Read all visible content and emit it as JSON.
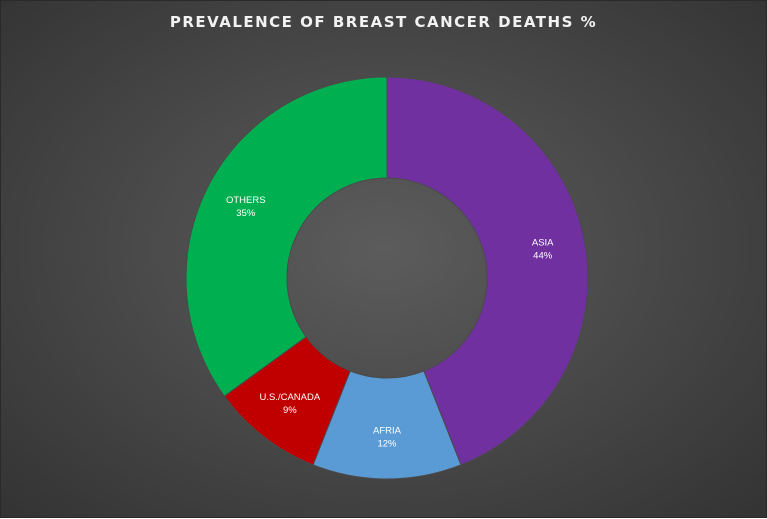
{
  "chart_data": {
    "type": "donut",
    "title": "PREVALENCE OF BREAST CANCER DEATHS %",
    "slices": [
      {
        "name": "ASIA",
        "value": 44,
        "label": "44%",
        "color": "#7030a0"
      },
      {
        "name": "AFRIA",
        "value": 12,
        "label": "12%",
        "color": "#5b9bd5"
      },
      {
        "name": "U.S./CANADA",
        "value": 9,
        "label": "9%",
        "color": "#c00000"
      },
      {
        "name": "OTHERS",
        "value": 35,
        "label": "35%",
        "color": "#00b050"
      }
    ],
    "background": "#4a4a4a",
    "legend": "none"
  }
}
